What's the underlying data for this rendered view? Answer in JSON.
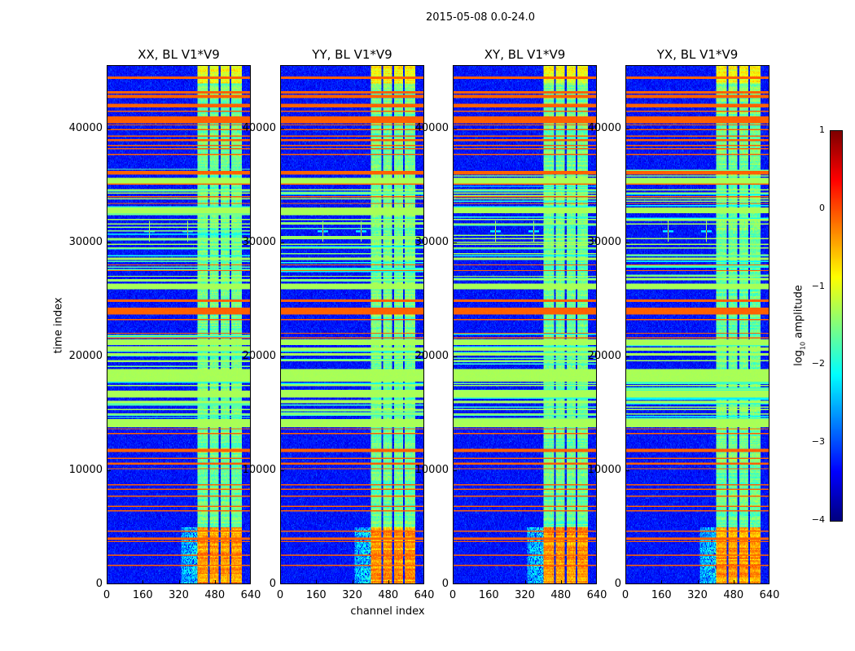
{
  "suptitle": "2015-05-08 0.0-24.0",
  "chart_data": {
    "type": "heatmap",
    "xlabel": "channel index",
    "ylabel": "time index",
    "xlim": [
      0,
      640
    ],
    "ylim": [
      0,
      45600
    ],
    "xticks": [
      0,
      160,
      320,
      480,
      640
    ],
    "yticks": [
      0,
      10000,
      20000,
      30000,
      40000
    ],
    "panels": [
      {
        "title": "XX, BL V1*V9",
        "seed": 1
      },
      {
        "title": "YY, BL V1*V9",
        "seed": 2
      },
      {
        "title": "XY, BL V1*V9",
        "seed": 3
      },
      {
        "title": "YX, BL V1*V9",
        "seed": 4
      }
    ],
    "colormap": "jet",
    "colorbar": {
      "range": [
        -4,
        1
      ],
      "ticks": [
        "1",
        "0",
        "−1",
        "−2",
        "−3",
        "−4"
      ],
      "tick_values": [
        1,
        0,
        -1,
        -2,
        -3,
        -4
      ],
      "label_prefix": "log",
      "label_sub": "10",
      "label_suffix": " amplitude"
    },
    "features": {
      "background_level": -3.3,
      "background_noise": 0.35,
      "flagged_row_level": -0.1,
      "flagged_rows": [
        [
          44450,
          44600
        ],
        [
          43150,
          43300
        ],
        [
          42750,
          43050
        ],
        [
          41950,
          42200
        ],
        [
          41550,
          41650
        ],
        [
          40550,
          41100
        ],
        [
          40300,
          40400
        ],
        [
          39900,
          40000
        ],
        [
          39300,
          39400
        ],
        [
          38900,
          39100
        ],
        [
          38500,
          38600
        ],
        [
          38200,
          38300
        ],
        [
          37700,
          37800
        ],
        [
          36050,
          36300
        ],
        [
          35100,
          35200
        ],
        [
          34000,
          34100
        ],
        [
          33400,
          33500
        ],
        [
          28000,
          28100
        ],
        [
          27500,
          27600
        ],
        [
          24800,
          25000
        ],
        [
          23700,
          24300
        ],
        [
          23200,
          23300
        ],
        [
          22000,
          22100
        ],
        [
          21600,
          21700
        ],
        [
          13600,
          13700
        ],
        [
          13200,
          13300
        ],
        [
          11600,
          11900
        ],
        [
          11000,
          11100
        ],
        [
          10550,
          10750
        ],
        [
          10150,
          10250
        ],
        [
          8750,
          8850
        ],
        [
          8300,
          8400
        ],
        [
          7700,
          7800
        ],
        [
          6800,
          6900
        ],
        [
          6450,
          6550
        ],
        [
          4600,
          4700
        ],
        [
          3950,
          4100
        ],
        [
          3750,
          3800
        ],
        [
          2550,
          2600
        ],
        [
          1600,
          1700
        ]
      ],
      "green_row_level": -1.3,
      "green_rows": [
        [
          35200,
          35700
        ],
        [
          34600,
          34700
        ],
        [
          34300,
          34400
        ],
        [
          33800,
          33900
        ],
        [
          32600,
          33100
        ],
        [
          32000,
          32100
        ],
        [
          31600,
          31700
        ],
        [
          30300,
          30400
        ],
        [
          29800,
          29900
        ],
        [
          29500,
          29600
        ],
        [
          28500,
          28700
        ],
        [
          27000,
          27100
        ],
        [
          26700,
          26800
        ],
        [
          25900,
          26400
        ],
        [
          21000,
          21500
        ],
        [
          20500,
          20800
        ],
        [
          20100,
          20300
        ],
        [
          19600,
          19700
        ],
        [
          17850,
          18950
        ],
        [
          17400,
          17500
        ],
        [
          16400,
          17000
        ],
        [
          15900,
          16100
        ],
        [
          15300,
          15400
        ],
        [
          14900,
          15000
        ],
        [
          13800,
          14500
        ],
        [
          300,
          350
        ]
      ],
      "striped_ranges": [
        [
          14000,
          22000
        ],
        [
          26000,
          36500
        ]
      ],
      "channel_columns": [
        [
          405,
          450
        ],
        [
          458,
          498
        ],
        [
          506,
          546
        ],
        [
          554,
          600
        ]
      ],
      "column_levels": [
        {
          "t": [
            0,
            5000
          ],
          "level": -0.4
        },
        {
          "t": [
            5000,
            44000
          ],
          "level": -1.6
        },
        {
          "t": [
            44000,
            45600
          ],
          "level": -0.9
        }
      ],
      "halo": {
        "channels": [
          330,
          405
        ],
        "t": [
          0,
          5000
        ],
        "level": -2.4
      },
      "spikes": [
        {
          "channel": 190,
          "t": 31000,
          "level": 0.3
        },
        {
          "channel": 360,
          "t": 31000,
          "level": 0.5
        }
      ]
    }
  }
}
